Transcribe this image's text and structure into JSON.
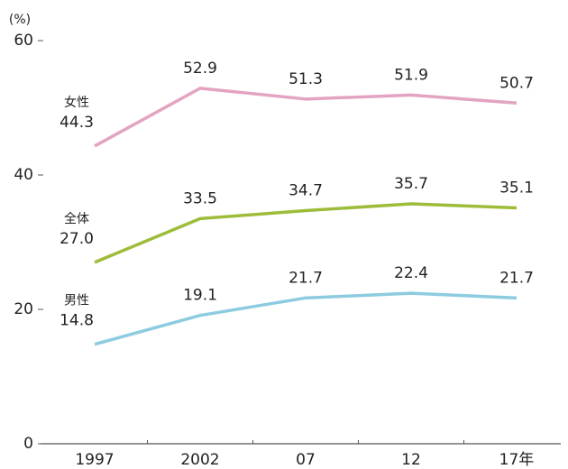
{
  "chart_data": {
    "type": "line",
    "y_unit_label": "(%)",
    "categories": [
      "1997",
      "2002",
      "07",
      "12",
      "17年"
    ],
    "series": [
      {
        "name": "女性",
        "color": "#e3a3c2",
        "values": [
          44.3,
          52.9,
          51.3,
          51.9,
          50.7
        ],
        "value_labels": [
          "44.3",
          "52.9",
          "51.3",
          "51.9",
          "50.7"
        ]
      },
      {
        "name": "全体",
        "color": "#9dbd3a",
        "values": [
          27.0,
          33.5,
          34.7,
          35.7,
          35.1
        ],
        "value_labels": [
          "27.0",
          "33.5",
          "34.7",
          "35.7",
          "35.1"
        ]
      },
      {
        "name": "男性",
        "color": "#8dcbe0",
        "values": [
          14.8,
          19.1,
          21.7,
          22.4,
          21.7
        ],
        "value_labels": [
          "14.8",
          "19.1",
          "21.7",
          "22.4",
          "21.7"
        ]
      }
    ],
    "ylim": [
      0,
      60
    ],
    "yticks": [
      0,
      20,
      40,
      60
    ]
  }
}
